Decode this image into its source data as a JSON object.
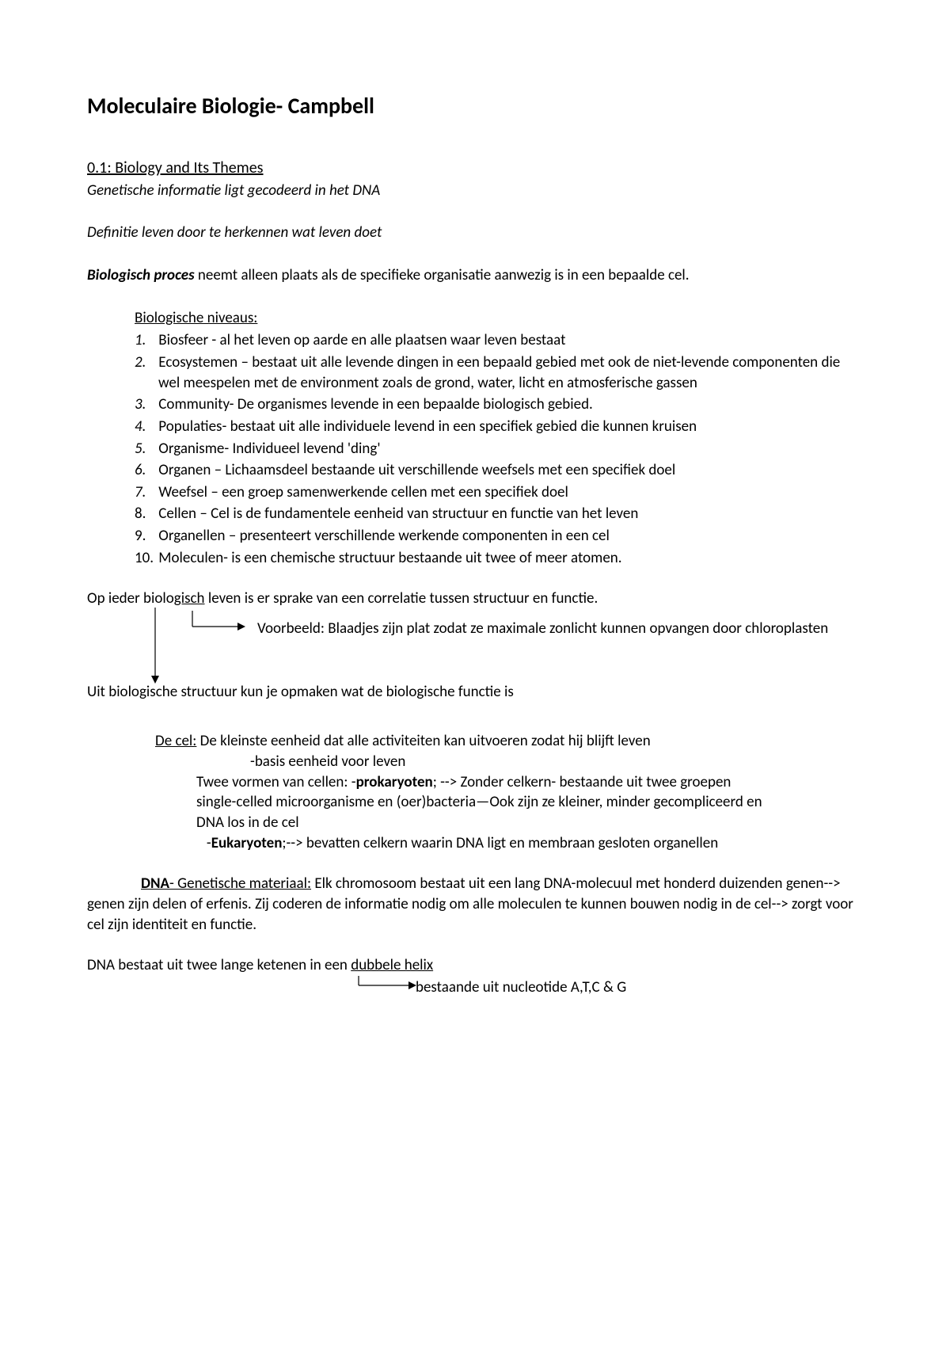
{
  "title": "Moleculaire Biologie- Campbell",
  "section_heading": "0.1: Biology and Its Themes",
  "italic1": "Genetische informatie ligt gecodeerd in het DNA",
  "italic2": "Definitie leven door te herkennen wat leven doet",
  "bioproces_label": "Biologisch proces",
  "bioproces_text": " neemt alleen plaats als de specifieke organisatie aanwezig is in een bepaalde cel.",
  "niveaus_heading": "Biologische niveaus:",
  "niveaus": [
    {
      "n": "1.",
      "italic_n": true,
      "text": "Biosfeer - al het leven op aarde en alle plaatsen waar leven bestaat"
    },
    {
      "n": "2.",
      "italic_n": true,
      "text": "Ecosystemen – bestaat uit alle levende dingen in een bepaald gebied met ook de niet-levende componenten die wel meespelen met de environment zoals de grond, water, licht en atmosferische gassen"
    },
    {
      "n": "3.",
      "italic_n": true,
      "text": "Community- De organismes levende in een bepaalde biologisch gebied."
    },
    {
      "n": "4.",
      "italic_n": true,
      "text": "Populaties- bestaat uit alle individuele levend in een specifiek gebied die kunnen kruisen"
    },
    {
      "n": "5.",
      "italic_n": true,
      "text": "Organisme- Individueel levend 'ding'"
    },
    {
      "n": "6.",
      "italic_n": true,
      "text": "Organen – Lichaamsdeel bestaande uit verschillende weefsels met een specifiek doel"
    },
    {
      "n": "7.",
      "italic_n": true,
      "text": "Weefsel – een groep samenwerkende cellen met een specifiek doel"
    },
    {
      "n": "8.",
      "italic_n": false,
      "text": "Cellen – Cel is de fundamentele eenheid van structuur en functie van het leven"
    },
    {
      "n": "9.",
      "italic_n": false,
      "text": "Organellen – presenteert verschillende werkende componenten in een cel"
    },
    {
      "n": "10.",
      "italic_n": false,
      "text": "Moleculen- is een chemische structuur bestaande uit twee of meer atomen."
    }
  ],
  "correlatie_text": "Op ieder biologisch leven is er sprake van een correlatie tussen structuur en functie.",
  "voorbeeld_text": "Voorbeeld: Blaadjes zijn plat zodat ze maximale zonlicht kunnen opvangen door chloroplasten",
  "structuur_text": "Uit biologische structuur kun je opmaken wat de biologische functie is",
  "cel_label": "De cel:",
  "cel_text1": " De kleinste eenheid dat alle activiteiten kan uitvoeren zodat hij blijft leven",
  "cel_text2": "-basis eenheid voor leven",
  "cel_text3a": "Twee vormen van cellen: -",
  "prokaryoten": "prokaryoten",
  "cel_text3b": "; --> Zonder celkern- bestaande uit twee groepen single-celled microorganisme en (oer)bacteria—Ook zijn ze kleiner, minder gecompliceerd en DNA los in de cel",
  "eukaryoten_prefix": "   -",
  "eukaryoten": "Eukaryoten",
  "cel_text4": ";--> bevatten celkern waarin DNA ligt en membraan gesloten organellen",
  "dna_label": " DNA",
  "dna_sublabel": "- Genetische materiaal:",
  "dna_text": " Elk chromosoom bestaat uit een lang DNA-molecuul met honderd duizenden genen--> genen zijn delen of erfenis. Zij coderen de informatie nodig om alle moleculen te kunnen bouwen nodig in de cel--> zorgt voor cel zijn identiteit en functie.",
  "helix_text": "DNA bestaat uit twee lange ketenen in een dubbele helix",
  "helix_note": "bestaande uit nucleotide A,T,C & G",
  "arrow_color": "#000000",
  "arrow_stroke_width": 1.2
}
